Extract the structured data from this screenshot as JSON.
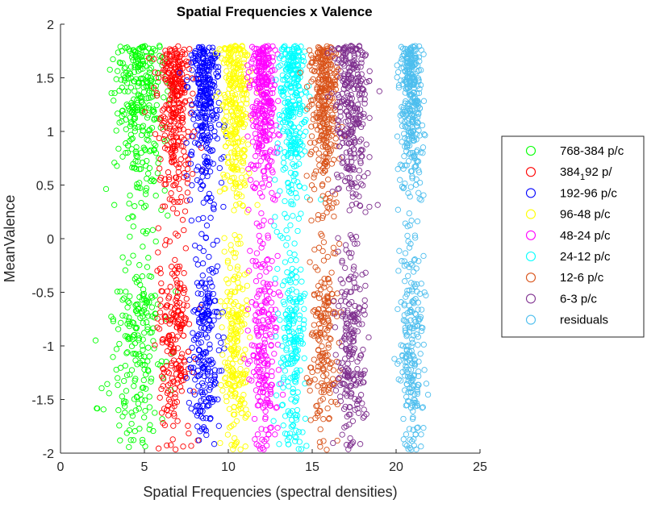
{
  "chart_data": {
    "type": "scatter",
    "title": "Spatial Frequencies x Valence",
    "xlabel": "Spatial Frequencies (spectral densities)",
    "ylabel": "MeanValence",
    "xlim": [
      0,
      25
    ],
    "ylim": [
      -2,
      2
    ],
    "x_ticks": [
      "0",
      "5",
      "10",
      "15",
      "20",
      "25"
    ],
    "y_ticks": [
      "2",
      "1.5",
      "1",
      "0.5",
      "0",
      "-0.5",
      "-1",
      "-1.5",
      "-2"
    ],
    "grid": false,
    "legend_position": "right",
    "marker": "open-circle",
    "series": [
      {
        "name": "768-384 p/c",
        "label_main": "768-384 p/c",
        "label_sub": "",
        "label_tail": "",
        "color": "#00ff00",
        "x_center": 4.7,
        "x_spread": 1.5
      },
      {
        "name": "384-192 p/c",
        "label_main": "384",
        "label_sub": "1",
        "label_tail": "92 p/",
        "color": "#ff0000",
        "x_center": 6.8,
        "x_spread": 0.95
      },
      {
        "name": "192-96 p/c",
        "label_main": "192-96 p/c",
        "label_sub": "",
        "label_tail": "",
        "color": "#0000ff",
        "x_center": 8.6,
        "x_spread": 0.9
      },
      {
        "name": "96-48 p/c",
        "label_main": "96-48 p/c",
        "label_sub": "",
        "label_tail": "",
        "color": "#ffff00",
        "x_center": 10.4,
        "x_spread": 0.75
      },
      {
        "name": "48-24 p/c",
        "label_main": "48-24 p/c",
        "label_sub": "",
        "label_tail": "",
        "color": "#ff00ff",
        "x_center": 12.1,
        "x_spread": 0.8
      },
      {
        "name": "24-12 p/c",
        "label_main": "24-12 p/c",
        "label_sub": "",
        "label_tail": "",
        "color": "#00ffff",
        "x_center": 13.8,
        "x_spread": 0.8
      },
      {
        "name": "12-6 p/c",
        "label_main": "12-6 p/c",
        "label_sub": "",
        "label_tail": "",
        "color": "#d95319",
        "x_center": 15.7,
        "x_spread": 0.85
      },
      {
        "name": "6-3 p/c",
        "label_main": "6-3 p/c",
        "label_sub": "",
        "label_tail": "",
        "color": "#7e2f8e",
        "x_center": 17.3,
        "x_spread": 0.9
      },
      {
        "name": "residuals",
        "label_main": "residuals",
        "label_sub": "",
        "label_tail": "",
        "color": "#4dbeee",
        "x_center": 20.9,
        "x_spread": 0.7
      }
    ],
    "points_per_series": 520,
    "valence_distribution": "bimodal, dense 0 to 1.8 and -0.7 to -1.8, sparse near -0.3"
  }
}
